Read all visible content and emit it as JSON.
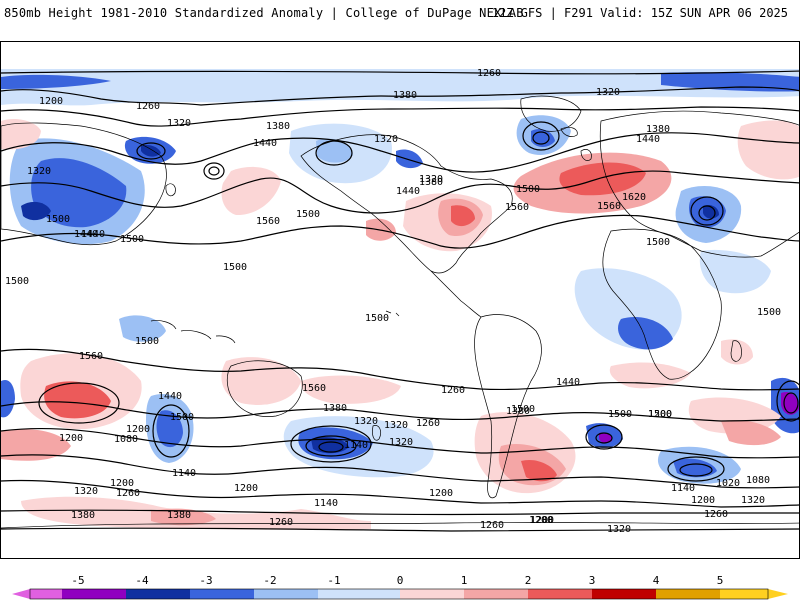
{
  "header": {
    "title": "850mb Height 1981-2010 Standardized Anomaly | College of DuPage NEXLAB",
    "run_info": "12Z GFS | F291 Valid: 15Z SUN APR 06 2025"
  },
  "colors": {
    "neg5": "#e060e0",
    "neg4": "#9000c0",
    "neg3": "#1030a0",
    "neg2": "#3a64dc",
    "neg1": "#9cc0f4",
    "neg05": "#cfe2fb",
    "pos05": "#fbd6d6",
    "pos1": "#f4a6a6",
    "pos2": "#ec5a5a",
    "pos3": "#c00000",
    "pos4": "#e0a000",
    "pos5": "#ffd020"
  },
  "colorbar": {
    "ticks": [
      "-5",
      "-4",
      "-3",
      "-2",
      "-1",
      "0",
      "1",
      "2",
      "3",
      "4",
      "5"
    ]
  },
  "contour_labels": [
    {
      "text": "1260"
    },
    {
      "text": "1200"
    },
    {
      "text": "1260"
    },
    {
      "text": "1380"
    },
    {
      "text": "1320"
    },
    {
      "text": "1320"
    },
    {
      "text": "1380"
    },
    {
      "text": "1440"
    },
    {
      "text": "1320"
    },
    {
      "text": "1380"
    },
    {
      "text": "1320"
    },
    {
      "text": "1440"
    },
    {
      "text": "1440"
    },
    {
      "text": "1500"
    },
    {
      "text": "1620"
    },
    {
      "text": "1560"
    },
    {
      "text": "1560"
    },
    {
      "text": "1500"
    },
    {
      "text": "1560"
    },
    {
      "text": "1440"
    },
    {
      "text": "1320"
    },
    {
      "text": "1380"
    },
    {
      "text": "1500"
    },
    {
      "text": "1440"
    },
    {
      "text": "1500"
    },
    {
      "text": "1500"
    },
    {
      "text": "1500"
    },
    {
      "text": "1500"
    },
    {
      "text": "1500"
    },
    {
      "text": "1500"
    },
    {
      "text": "1500"
    },
    {
      "text": "1560"
    },
    {
      "text": "1560"
    },
    {
      "text": "1440"
    },
    {
      "text": "1440"
    },
    {
      "text": "1260"
    },
    {
      "text": "1500"
    },
    {
      "text": "1380"
    },
    {
      "text": "1320"
    },
    {
      "text": "1260"
    },
    {
      "text": "1320"
    },
    {
      "text": "1200"
    },
    {
      "text": "1080"
    },
    {
      "text": "1140"
    },
    {
      "text": "1320"
    },
    {
      "text": "1500"
    },
    {
      "text": "1200"
    },
    {
      "text": "1380"
    },
    {
      "text": "1200"
    },
    {
      "text": "1140"
    },
    {
      "text": "1200"
    },
    {
      "text": "1260"
    },
    {
      "text": "1320"
    },
    {
      "text": "1380"
    },
    {
      "text": "1380"
    },
    {
      "text": "1200"
    },
    {
      "text": "1140"
    },
    {
      "text": "1200"
    },
    {
      "text": "1260"
    },
    {
      "text": "1200"
    },
    {
      "text": "1140"
    },
    {
      "text": "1020"
    },
    {
      "text": "1080"
    },
    {
      "text": "1200"
    },
    {
      "text": "1320"
    },
    {
      "text": "1260"
    },
    {
      "text": "1260"
    },
    {
      "text": "1200"
    },
    {
      "text": "1320"
    },
    {
      "text": "1500"
    },
    {
      "text": "1500"
    }
  ]
}
